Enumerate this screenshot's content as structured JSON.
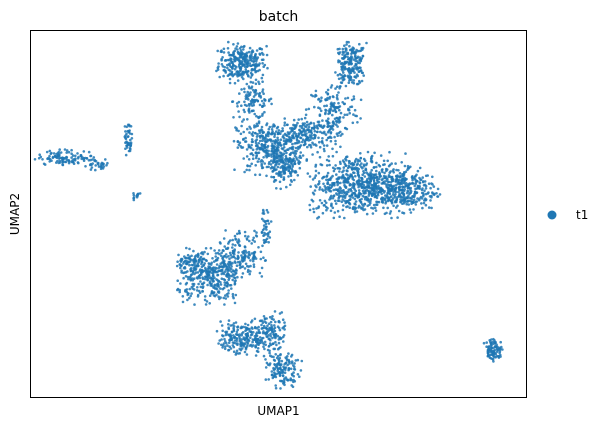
{
  "chart_data": {
    "type": "scatter",
    "title": "batch",
    "xlabel": "UMAP1",
    "ylabel": "UMAP2",
    "xlim": [
      0,
      100
    ],
    "ylim": [
      0,
      100
    ],
    "grid": false,
    "xticks": [],
    "yticks": [],
    "legend": {
      "position": "right",
      "entries": [
        {
          "label": "t1",
          "color": "#1f77b4"
        }
      ]
    },
    "series": [
      {
        "name": "t1",
        "color": "#1f77b4",
        "clusters": [
          {
            "cx": 42.7,
            "cy": 91.2,
            "sx": 2.4,
            "sy": 2.6,
            "n": 280
          },
          {
            "cx": 44.9,
            "cy": 80.8,
            "sx": 2.0,
            "sy": 2.4,
            "n": 100
          },
          {
            "cx": 64.5,
            "cy": 90.7,
            "sx": 1.6,
            "sy": 2.9,
            "n": 200
          },
          {
            "cx": 61.0,
            "cy": 78.3,
            "sx": 2.6,
            "sy": 3.6,
            "n": 150
          },
          {
            "cx": 48.4,
            "cy": 68.3,
            "sx": 3.4,
            "sy": 3.6,
            "n": 380
          },
          {
            "cx": 56.5,
            "cy": 71.5,
            "sx": 3.0,
            "sy": 2.3,
            "n": 170
          },
          {
            "cx": 51.0,
            "cy": 62.4,
            "sx": 1.6,
            "sy": 2.6,
            "n": 120
          },
          {
            "cx": 66.0,
            "cy": 58.0,
            "sx": 4.8,
            "sy": 4.2,
            "n": 650
          },
          {
            "cx": 74.7,
            "cy": 56.7,
            "sx": 3.6,
            "sy": 3.0,
            "n": 330
          },
          {
            "cx": 7.5,
            "cy": 65.4,
            "sx": 3.0,
            "sy": 1.0,
            "n": 110
          },
          {
            "cx": 13.6,
            "cy": 63.4,
            "sx": 1.4,
            "sy": 0.8,
            "n": 30
          },
          {
            "cx": 19.6,
            "cy": 70.8,
            "sx": 0.4,
            "sy": 2.4,
            "n": 45
          },
          {
            "cx": 21.5,
            "cy": 55.1,
            "sx": 0.5,
            "sy": 0.6,
            "n": 12
          },
          {
            "cx": 36.1,
            "cy": 32.8,
            "sx": 3.2,
            "sy": 3.8,
            "n": 360
          },
          {
            "cx": 42.1,
            "cy": 39.1,
            "sx": 2.6,
            "sy": 3.0,
            "n": 170
          },
          {
            "cx": 32.1,
            "cy": 37.1,
            "sx": 1.4,
            "sy": 0.9,
            "n": 40
          },
          {
            "cx": 47.3,
            "cy": 46.0,
            "sx": 0.7,
            "sy": 3.2,
            "n": 40
          },
          {
            "cx": 42.7,
            "cy": 16.1,
            "sx": 2.5,
            "sy": 2.4,
            "n": 210
          },
          {
            "cx": 48.4,
            "cy": 17.1,
            "sx": 1.5,
            "sy": 3.2,
            "n": 130
          },
          {
            "cx": 51.0,
            "cy": 7.3,
            "sx": 1.7,
            "sy": 2.2,
            "n": 130
          },
          {
            "cx": 93.4,
            "cy": 13.0,
            "sx": 0.9,
            "sy": 1.5,
            "n": 90
          }
        ]
      }
    ]
  }
}
